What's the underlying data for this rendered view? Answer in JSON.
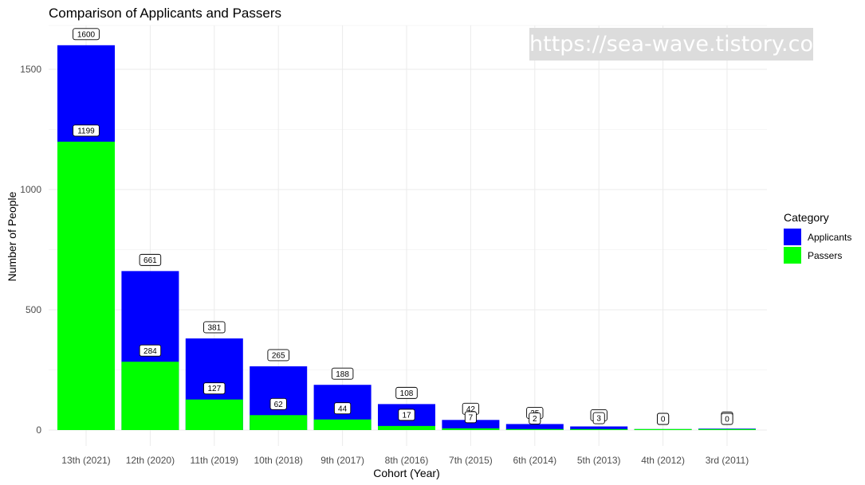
{
  "chart_data": {
    "type": "bar",
    "title": "Comparison of Applicants and Passers",
    "xlabel": "Cohort (Year)",
    "ylabel": "Number of People",
    "categories": [
      "13th (2021)",
      "12th (2020)",
      "11th (2019)",
      "10th (2018)",
      "9th (2017)",
      "8th (2016)",
      "7th (2015)",
      "6th (2014)",
      "5th (2013)",
      "4th (2012)",
      "3rd (2011)"
    ],
    "series": [
      {
        "name": "Applicants",
        "color": "#0000ff",
        "values": [
          1600,
          661,
          381,
          265,
          188,
          108,
          42,
          25,
          15,
          0,
          6
        ]
      },
      {
        "name": "Passers",
        "color": "#00ff00",
        "values": [
          1199,
          284,
          127,
          62,
          44,
          17,
          7,
          2,
          3,
          0,
          0
        ]
      }
    ],
    "ylim": [
      0,
      1650
    ],
    "yticks": [
      0,
      500,
      1000,
      1500
    ],
    "grid": true,
    "legend": {
      "title": "Category",
      "position": "right"
    }
  },
  "watermark": "https://sea-wave.tistory.com"
}
